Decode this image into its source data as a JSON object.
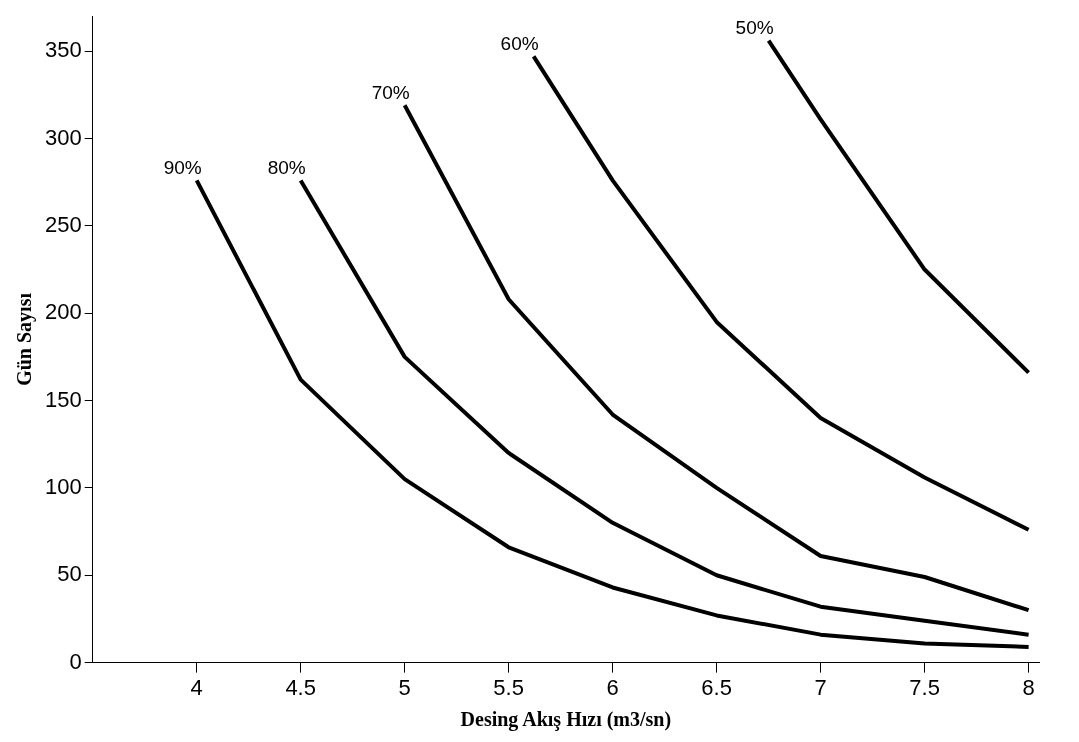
{
  "chart_data": {
    "type": "line",
    "xlabel": "Desing Akış Hızı (m3/sn)",
    "ylabel": "Gün Sayısı",
    "xlim": [
      3.5,
      8.05
    ],
    "xticks": [
      4,
      4.5,
      5,
      5.5,
      6,
      6.5,
      7,
      7.5,
      8
    ],
    "ylim": [
      0,
      370
    ],
    "yticks": [
      0,
      50,
      100,
      150,
      200,
      250,
      300,
      350
    ],
    "grid": false,
    "legend": false,
    "marker": "none",
    "line_style": "solid",
    "series": [
      {
        "name": "90%",
        "color": "#000000",
        "x": [
          4,
          4.5,
          5,
          5.5,
          6,
          6.5,
          7,
          7.5,
          8
        ],
        "values": [
          276,
          162,
          105,
          66,
          43,
          27,
          16,
          11,
          9
        ]
      },
      {
        "name": "80%",
        "color": "#000000",
        "x": [
          4.5,
          5,
          5.5,
          6,
          6.5,
          7,
          7.5,
          8
        ],
        "values": [
          276,
          175,
          120,
          80,
          50,
          32,
          24,
          16
        ]
      },
      {
        "name": "70%",
        "color": "#000000",
        "x": [
          5,
          5.5,
          6,
          6.5,
          7,
          7.5,
          8
        ],
        "values": [
          319,
          208,
          142,
          100,
          61,
          49,
          30
        ]
      },
      {
        "name": "60%",
        "color": "#000000",
        "x": [
          5.62,
          6,
          6.5,
          7,
          7.5,
          8
        ],
        "values": [
          347,
          276,
          195,
          140,
          106,
          76
        ]
      },
      {
        "name": "50%",
        "color": "#000000",
        "x": [
          6.75,
          7,
          7.5,
          8
        ],
        "values": [
          356,
          311,
          225,
          166
        ]
      }
    ]
  }
}
